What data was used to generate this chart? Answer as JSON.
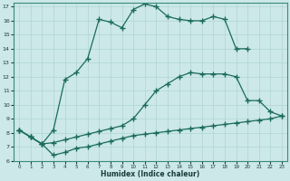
{
  "xlabel": "Humidex (Indice chaleur)",
  "xlim": [
    -0.5,
    23.5
  ],
  "ylim": [
    6,
    17.3
  ],
  "yticks": [
    6,
    7,
    8,
    9,
    10,
    11,
    12,
    13,
    14,
    15,
    16,
    17
  ],
  "xticks": [
    0,
    1,
    2,
    3,
    4,
    5,
    6,
    7,
    8,
    9,
    10,
    11,
    12,
    13,
    14,
    15,
    16,
    17,
    18,
    19,
    20,
    21,
    22,
    23
  ],
  "bg_color": "#cce8e8",
  "line_color": "#1a6b5a",
  "grid_color": "#b0d4d4",
  "line1_x": [
    0,
    1,
    2,
    3,
    4,
    5,
    6,
    7,
    8,
    9,
    10,
    11,
    12,
    13,
    14,
    15,
    16,
    17,
    18,
    19,
    20,
    21,
    22,
    23
  ],
  "line1_y": [
    8.2,
    7.7,
    7.2,
    6.4,
    6.6,
    6.9,
    7.0,
    7.2,
    7.4,
    7.6,
    7.8,
    7.9,
    8.0,
    8.1,
    8.2,
    8.3,
    8.4,
    8.5,
    8.6,
    8.7,
    8.8,
    8.9,
    9.0,
    9.2
  ],
  "line2_x": [
    0,
    1,
    2,
    3,
    4,
    5,
    6,
    7,
    8,
    9,
    10,
    11,
    12,
    13,
    14,
    15,
    16,
    17,
    18,
    19,
    20,
    21,
    22,
    23
  ],
  "line2_y": [
    8.2,
    7.7,
    7.2,
    7.3,
    7.5,
    7.7,
    7.9,
    8.1,
    8.3,
    8.5,
    9.0,
    10.0,
    11.0,
    11.5,
    12.0,
    12.3,
    12.2,
    12.2,
    12.2,
    12.0,
    10.3,
    10.3,
    9.5,
    9.2
  ],
  "line3_x": [
    0,
    1,
    2,
    3,
    4,
    5,
    6,
    7,
    8,
    9,
    10,
    11,
    12,
    13,
    14,
    15,
    16,
    17,
    18,
    19,
    20
  ],
  "line3_y": [
    8.2,
    7.7,
    7.2,
    8.2,
    11.8,
    12.3,
    13.3,
    16.1,
    15.9,
    15.5,
    16.8,
    17.2,
    17.0,
    16.3,
    16.1,
    16.0,
    16.0,
    16.3,
    16.1,
    14.0,
    14.0
  ]
}
